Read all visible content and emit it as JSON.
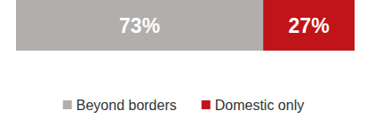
{
  "chart_data": {
    "type": "bar",
    "orientation": "horizontal",
    "stacked": true,
    "categories": [
      null
    ],
    "series": [
      {
        "name": "Beyond borders",
        "color": "#b1aeac",
        "values": [
          73
        ],
        "value_labels": [
          "73%"
        ]
      },
      {
        "name": "Domestic only",
        "color": "#c0141a",
        "values": [
          27
        ],
        "value_labels": [
          "27%"
        ]
      }
    ],
    "xlim": [
      0,
      100
    ],
    "tick_labels": false,
    "data_labels": true,
    "legend": "bottom",
    "grid": false
  }
}
